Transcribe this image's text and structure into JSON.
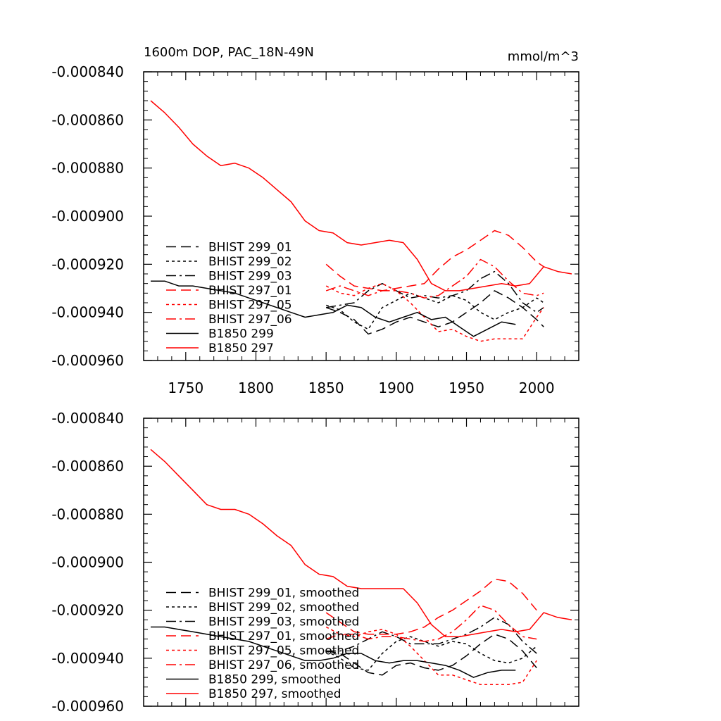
{
  "chart_data": [
    {
      "type": "line",
      "title": "1600m DOP, PAC_18N-49N",
      "units": "mmol/m^3",
      "xlim": [
        1720,
        2030
      ],
      "ylim": [
        -0.00096,
        -0.00084
      ],
      "x_ticks": [
        1750,
        1800,
        1850,
        1900,
        1950,
        2000
      ],
      "x_tick_labels": [
        "1750",
        "1800",
        "1850",
        "1900",
        "1950",
        "2000"
      ],
      "y_ticks": [
        -0.00084,
        -0.00086,
        -0.00088,
        -0.0009,
        -0.00092,
        -0.00094,
        -0.00096
      ],
      "y_tick_labels": [
        "-0.000840",
        "-0.000860",
        "-0.000880",
        "-0.000900",
        "-0.000920",
        "-0.000940",
        "-0.000960"
      ],
      "legend_position": "lower-left",
      "series": [
        {
          "name": "BHIST 299_01",
          "color": "#000000",
          "dash": "dash",
          "x": [
            1850,
            1860,
            1870,
            1880,
            1890,
            1900,
            1910,
            1920,
            1930,
            1940,
            1950,
            1960,
            1970,
            1980,
            1990,
            2000,
            2005
          ],
          "y": [
            -0.000938,
            -0.00094,
            -0.000943,
            -0.000949,
            -0.000947,
            -0.000944,
            -0.000942,
            -0.000944,
            -0.000946,
            -0.000944,
            -0.00094,
            -0.000936,
            -0.000931,
            -0.000934,
            -0.000938,
            -0.000943,
            -0.000946
          ]
        },
        {
          "name": "BHIST 299_02",
          "color": "#000000",
          "dash": "dot",
          "x": [
            1850,
            1860,
            1870,
            1880,
            1890,
            1900,
            1910,
            1920,
            1930,
            1940,
            1950,
            1960,
            1970,
            1980,
            1990,
            2000,
            2005
          ],
          "y": [
            -0.000937,
            -0.000939,
            -0.000944,
            -0.000947,
            -0.000938,
            -0.000935,
            -0.000932,
            -0.000934,
            -0.000936,
            -0.000933,
            -0.000935,
            -0.00094,
            -0.000943,
            -0.00094,
            -0.000938,
            -0.000934,
            -0.000936
          ]
        },
        {
          "name": "BHIST 299_03",
          "color": "#000000",
          "dash": "dashdot",
          "x": [
            1850,
            1860,
            1870,
            1880,
            1890,
            1900,
            1910,
            1920,
            1930,
            1940,
            1950,
            1960,
            1970,
            1980,
            1990,
            2000,
            2005
          ],
          "y": [
            -0.000938,
            -0.000937,
            -0.000936,
            -0.000931,
            -0.000928,
            -0.000931,
            -0.000934,
            -0.000933,
            -0.000934,
            -0.000933,
            -0.000931,
            -0.000926,
            -0.000923,
            -0.000928,
            -0.000936,
            -0.00094,
            -0.000938
          ]
        },
        {
          "name": "BHIST 297_01",
          "color": "#ff0000",
          "dash": "dash",
          "x": [
            1850,
            1860,
            1870,
            1880,
            1890,
            1900,
            1910,
            1920,
            1930,
            1940,
            1950,
            1960,
            1970,
            1980,
            1990,
            2000,
            2005
          ],
          "y": [
            -0.00092,
            -0.000925,
            -0.000929,
            -0.00093,
            -0.000931,
            -0.00093,
            -0.000929,
            -0.000928,
            -0.000922,
            -0.000917,
            -0.000914,
            -0.00091,
            -0.000906,
            -0.000908,
            -0.000913,
            -0.000919,
            -0.000921
          ]
        },
        {
          "name": "BHIST 297_05",
          "color": "#ff0000",
          "dash": "dot",
          "x": [
            1850,
            1860,
            1870,
            1880,
            1890,
            1900,
            1910,
            1920,
            1930,
            1940,
            1950,
            1960,
            1970,
            1980,
            1990,
            2000,
            2005
          ],
          "y": [
            -0.000929,
            -0.000932,
            -0.000933,
            -0.00093,
            -0.000928,
            -0.000931,
            -0.000936,
            -0.000942,
            -0.000948,
            -0.000947,
            -0.00095,
            -0.000952,
            -0.000951,
            -0.000951,
            -0.000951,
            -0.000942,
            -0.000938
          ]
        },
        {
          "name": "BHIST 297_06",
          "color": "#ff0000",
          "dash": "dashdot",
          "x": [
            1850,
            1860,
            1870,
            1880,
            1890,
            1900,
            1910,
            1920,
            1930,
            1940,
            1950,
            1960,
            1970,
            1980,
            1990,
            2000,
            2005
          ],
          "y": [
            -0.000931,
            -0.000929,
            -0.000931,
            -0.000933,
            -0.000931,
            -0.000931,
            -0.000932,
            -0.000934,
            -0.000933,
            -0.000929,
            -0.000925,
            -0.000918,
            -0.000921,
            -0.000927,
            -0.000932,
            -0.000933,
            -0.000932
          ]
        },
        {
          "name": "B1850 299",
          "color": "#000000",
          "dash": "solid",
          "x": [
            1725,
            1735,
            1745,
            1755,
            1765,
            1775,
            1785,
            1795,
            1805,
            1815,
            1825,
            1835,
            1845,
            1855,
            1865,
            1875,
            1885,
            1895,
            1905,
            1915,
            1925,
            1935,
            1945,
            1955,
            1965,
            1975,
            1985
          ],
          "y": [
            -0.000927,
            -0.000927,
            -0.000929,
            -0.000929,
            -0.00093,
            -0.000931,
            -0.000932,
            -0.000934,
            -0.000936,
            -0.000938,
            -0.00094,
            -0.000942,
            -0.000941,
            -0.00094,
            -0.000937,
            -0.000938,
            -0.000942,
            -0.000944,
            -0.000942,
            -0.00094,
            -0.000943,
            -0.000942,
            -0.000946,
            -0.00095,
            -0.000947,
            -0.000944,
            -0.000945
          ]
        },
        {
          "name": "B1850 297",
          "color": "#ff0000",
          "dash": "solid",
          "x": [
            1725,
            1735,
            1745,
            1755,
            1765,
            1775,
            1785,
            1795,
            1805,
            1815,
            1825,
            1835,
            1845,
            1855,
            1865,
            1875,
            1885,
            1895,
            1905,
            1915,
            1925,
            1935,
            1945,
            1955,
            1965,
            1975,
            1985,
            1995,
            2005,
            2015,
            2025
          ],
          "y": [
            -0.000852,
            -0.000857,
            -0.000863,
            -0.00087,
            -0.000875,
            -0.000879,
            -0.000878,
            -0.00088,
            -0.000884,
            -0.000889,
            -0.000894,
            -0.000902,
            -0.000906,
            -0.000907,
            -0.000911,
            -0.000912,
            -0.000911,
            -0.00091,
            -0.000911,
            -0.000918,
            -0.000928,
            -0.000931,
            -0.000931,
            -0.00093,
            -0.000929,
            -0.000928,
            -0.000929,
            -0.000928,
            -0.000921,
            -0.000923,
            -0.000924
          ]
        }
      ]
    },
    {
      "type": "line",
      "xlim": [
        1720,
        2030
      ],
      "ylim": [
        -0.00096,
        -0.00084
      ],
      "x_ticks": [
        1750,
        1800,
        1850,
        1900,
        1950,
        2000
      ],
      "y_ticks": [
        -0.00084,
        -0.00086,
        -0.00088,
        -0.0009,
        -0.00092,
        -0.00094,
        -0.00096
      ],
      "y_tick_labels": [
        "-0.000840",
        "-0.000860",
        "-0.000880",
        "-0.000900",
        "-0.000920",
        "-0.000940",
        "-0.000960"
      ],
      "legend_position": "lower-left",
      "series": [
        {
          "name": "BHIST 299_01, smoothed",
          "color": "#000000",
          "dash": "dash",
          "x": [
            1850,
            1860,
            1870,
            1880,
            1890,
            1900,
            1910,
            1920,
            1930,
            1940,
            1950,
            1960,
            1970,
            1980,
            1990,
            2000
          ],
          "y": [
            -0.000937,
            -0.000938,
            -0.000942,
            -0.000946,
            -0.000947,
            -0.000943,
            -0.000942,
            -0.000944,
            -0.000945,
            -0.000943,
            -0.000939,
            -0.000934,
            -0.00093,
            -0.000932,
            -0.000937,
            -0.000944
          ]
        },
        {
          "name": "BHIST 299_02, smoothed",
          "color": "#000000",
          "dash": "dot",
          "x": [
            1850,
            1860,
            1870,
            1880,
            1890,
            1900,
            1910,
            1920,
            1930,
            1940,
            1950,
            1960,
            1970,
            1980,
            1990,
            2000
          ],
          "y": [
            -0.000937,
            -0.00094,
            -0.000944,
            -0.000945,
            -0.000938,
            -0.000933,
            -0.000931,
            -0.000933,
            -0.000935,
            -0.000933,
            -0.000934,
            -0.000938,
            -0.000941,
            -0.000942,
            -0.00094,
            -0.000935
          ]
        },
        {
          "name": "BHIST 299_03, smoothed",
          "color": "#000000",
          "dash": "dashdot",
          "x": [
            1850,
            1860,
            1870,
            1880,
            1890,
            1900,
            1910,
            1920,
            1930,
            1940,
            1950,
            1960,
            1970,
            1980,
            1990,
            2000
          ],
          "y": [
            -0.000937,
            -0.000937,
            -0.000935,
            -0.000932,
            -0.000929,
            -0.000931,
            -0.000934,
            -0.000934,
            -0.000934,
            -0.000932,
            -0.00093,
            -0.000927,
            -0.000923,
            -0.000926,
            -0.000933,
            -0.000938
          ]
        },
        {
          "name": "BHIST 297_01, smoothed",
          "color": "#ff0000",
          "dash": "dash",
          "x": [
            1850,
            1860,
            1870,
            1880,
            1890,
            1900,
            1910,
            1920,
            1930,
            1940,
            1950,
            1960,
            1970,
            1980,
            1990,
            2000
          ],
          "y": [
            -0.000921,
            -0.000925,
            -0.000929,
            -0.00093,
            -0.00093,
            -0.00093,
            -0.000929,
            -0.000927,
            -0.000923,
            -0.00092,
            -0.000916,
            -0.000912,
            -0.000907,
            -0.000908,
            -0.000913,
            -0.00092
          ]
        },
        {
          "name": "BHIST 297_05, smoothed",
          "color": "#ff0000",
          "dash": "dot",
          "x": [
            1850,
            1860,
            1870,
            1880,
            1890,
            1900,
            1910,
            1920,
            1930,
            1940,
            1950,
            1960,
            1970,
            1980,
            1990,
            2000
          ],
          "y": [
            -0.000927,
            -0.00093,
            -0.000931,
            -0.000929,
            -0.000928,
            -0.00093,
            -0.000935,
            -0.000941,
            -0.000947,
            -0.000947,
            -0.000949,
            -0.000951,
            -0.000951,
            -0.000951,
            -0.00095,
            -0.000941
          ]
        },
        {
          "name": "BHIST 297_06, smoothed",
          "color": "#ff0000",
          "dash": "dashdot",
          "x": [
            1850,
            1860,
            1870,
            1880,
            1890,
            1900,
            1910,
            1920,
            1930,
            1940,
            1950,
            1960,
            1970,
            1980,
            1990,
            2000
          ],
          "y": [
            -0.000932,
            -0.00093,
            -0.00093,
            -0.000932,
            -0.000931,
            -0.000931,
            -0.000932,
            -0.000933,
            -0.000932,
            -0.000929,
            -0.000924,
            -0.000918,
            -0.00092,
            -0.000926,
            -0.000931,
            -0.000932
          ]
        },
        {
          "name": "B1850 299, smoothed",
          "color": "#000000",
          "dash": "solid",
          "x": [
            1725,
            1735,
            1745,
            1755,
            1765,
            1775,
            1785,
            1795,
            1805,
            1815,
            1825,
            1835,
            1845,
            1855,
            1865,
            1875,
            1885,
            1895,
            1905,
            1915,
            1925,
            1935,
            1945,
            1955,
            1965,
            1975,
            1985
          ],
          "y": [
            -0.000927,
            -0.000927,
            -0.000928,
            -0.000929,
            -0.00093,
            -0.000931,
            -0.000932,
            -0.000933,
            -0.000935,
            -0.000937,
            -0.000939,
            -0.000941,
            -0.000941,
            -0.00094,
            -0.000938,
            -0.000938,
            -0.000941,
            -0.000942,
            -0.000941,
            -0.000941,
            -0.000942,
            -0.000943,
            -0.000945,
            -0.000948,
            -0.000946,
            -0.000945,
            -0.000945
          ]
        },
        {
          "name": "B1850 297, smoothed",
          "color": "#ff0000",
          "dash": "solid",
          "x": [
            1725,
            1735,
            1745,
            1755,
            1765,
            1775,
            1785,
            1795,
            1805,
            1815,
            1825,
            1835,
            1845,
            1855,
            1865,
            1875,
            1885,
            1895,
            1905,
            1915,
            1925,
            1935,
            1945,
            1955,
            1965,
            1975,
            1985,
            1995,
            2005,
            2015,
            2025
          ],
          "y": [
            -0.000853,
            -0.000858,
            -0.000864,
            -0.00087,
            -0.000876,
            -0.000878,
            -0.000878,
            -0.00088,
            -0.000884,
            -0.000889,
            -0.000893,
            -0.000901,
            -0.000905,
            -0.000906,
            -0.00091,
            -0.000911,
            -0.000911,
            -0.000911,
            -0.000911,
            -0.000917,
            -0.000926,
            -0.000931,
            -0.000931,
            -0.00093,
            -0.000929,
            -0.000928,
            -0.000929,
            -0.000928,
            -0.000921,
            -0.000923,
            -0.000924
          ]
        }
      ]
    }
  ]
}
